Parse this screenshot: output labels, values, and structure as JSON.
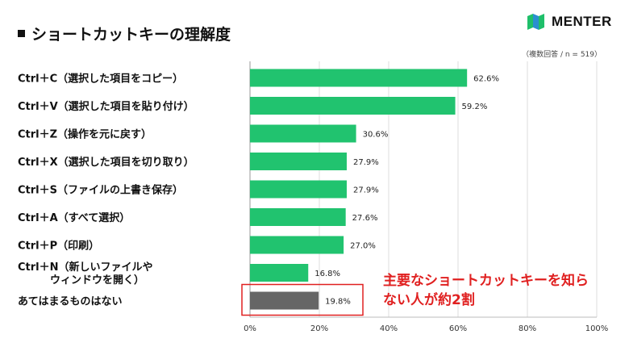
{
  "title": "ショートカットキーの理解度",
  "logo": {
    "text": "MENTER",
    "icon": "menter-logo-icon"
  },
  "note": "（複数回答 / n = 519）",
  "callout": [
    "主要なショートカットキーを知ら",
    "ない人が約2割"
  ],
  "colors": {
    "bar": "#21c36f",
    "bar_highlight": "#666666",
    "callout": "#e02020",
    "logo_green": "#1fbf6a",
    "logo_teal": "#2a8fd0"
  },
  "chart_data": {
    "type": "bar",
    "orientation": "horizontal",
    "categories": [
      [
        "Ctrl＋C（選択した項目をコピー）"
      ],
      [
        "Ctrl＋V（選択した項目を貼り付け）"
      ],
      [
        "Ctrl＋Z（操作を元に戻す）"
      ],
      [
        "Ctrl＋X（選択した項目を切り取り）"
      ],
      [
        "Ctrl＋S（ファイルの上書き保存）"
      ],
      [
        "Ctrl＋A（すべて選択）"
      ],
      [
        "Ctrl＋P（印刷）"
      ],
      [
        "Ctrl＋N（新しいファイルや",
        "ウィンドウを開く）"
      ],
      [
        "あてはまるものはない"
      ]
    ],
    "values": [
      62.6,
      59.2,
      30.6,
      27.9,
      27.9,
      27.6,
      27.0,
      16.8,
      19.8
    ],
    "value_labels": [
      "62.6%",
      "59.2%",
      "30.6%",
      "27.9%",
      "27.9%",
      "27.6%",
      "27.0%",
      "16.8%",
      "19.8%"
    ],
    "xlim": [
      0,
      100
    ],
    "xticks": [
      0,
      20,
      40,
      60,
      80,
      100
    ],
    "xtick_labels": [
      "0%",
      "20%",
      "40%",
      "60%",
      "80%",
      "100%"
    ],
    "highlight_index": 8,
    "grid": true
  }
}
